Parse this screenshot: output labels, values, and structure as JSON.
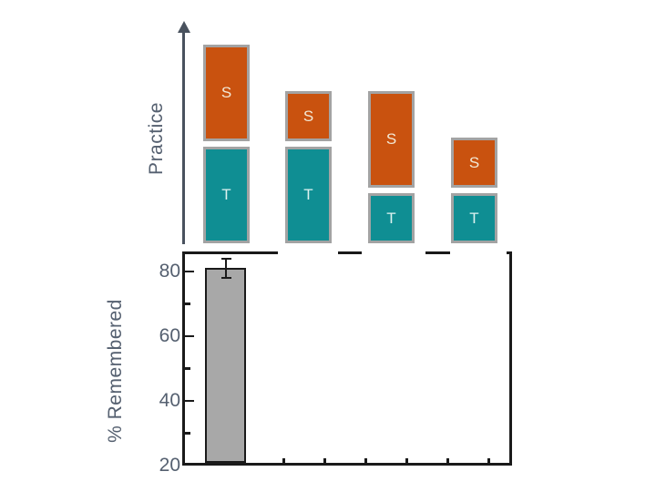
{
  "colors": {
    "study_box_orange": "#c9520f",
    "test_box_teal": "#0f8e93",
    "box_border_gray": "#a3a3a3",
    "bar_fill_gray": "#a8a8a8",
    "axis_black": "#1a1a1a",
    "text_gray_blue": "#556070",
    "study_letter": "#f2e9d6",
    "test_letter": "#ddf2f0"
  },
  "chart_data": [
    {
      "type": "diagram",
      "title": "Practice",
      "axis_label": "Practice",
      "description": "Vertical arrow axis labeled Practice; four conditions of stacked boxes showing relative amounts of study (S, orange) and test (T, teal) practice. Amounts are in relative units: 2 = tall box, 1 = short box.",
      "conditions": [
        {
          "segments": [
            {
              "label": "S",
              "amount": 2
            },
            {
              "label": "T",
              "amount": 2
            }
          ]
        },
        {
          "segments": [
            {
              "label": "S",
              "amount": 1
            },
            {
              "label": "T",
              "amount": 2
            }
          ]
        },
        {
          "segments": [
            {
              "label": "S",
              "amount": 2
            },
            {
              "label": "T",
              "amount": 1
            }
          ]
        },
        {
          "segments": [
            {
              "label": "S",
              "amount": 1
            },
            {
              "label": "T",
              "amount": 1
            }
          ]
        }
      ]
    },
    {
      "type": "bar",
      "ylabel": "% Remembered",
      "xlabel": "",
      "ylim": [
        20,
        86
      ],
      "yticks_major": [
        80,
        60,
        40,
        20
      ],
      "yticks_minor": [
        70,
        50,
        30
      ],
      "grid": false,
      "legend": "none",
      "note": "Only the first condition's bar is revealed; positions for the other three bars are blank (top frame broken above them).",
      "series": [
        {
          "name": "% Remembered",
          "values": [
            81,
            null,
            null,
            null
          ]
        }
      ],
      "error_bars": [
        3,
        null,
        null,
        null
      ],
      "bar_color": "#a8a8a8"
    }
  ]
}
